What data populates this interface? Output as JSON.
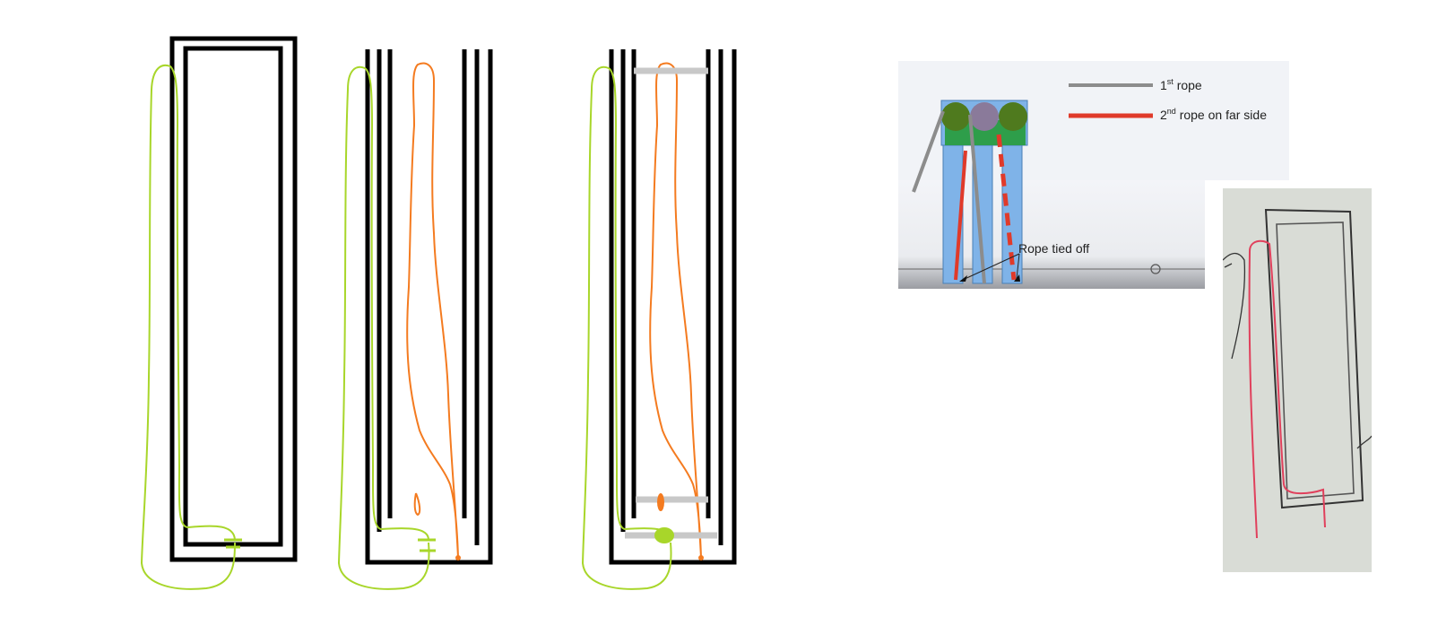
{
  "colors": {
    "frame": "#000000",
    "rope_green": "#a8d62a",
    "rope_orange": "#f47b20",
    "tie_bar": "#c8c8c8",
    "slide_bg": "#eef1f6",
    "log_blue": "#7fb3e8",
    "log_green": "#2e9e4a",
    "log_olive": "#4f7a1e",
    "log_mauve": "#8a7a9a",
    "rope_grey": "#8c8c8c",
    "rope_red": "#e03a2a",
    "photo_bg": "#d8dbd4",
    "pencil": "#444444",
    "pencil_red": "#e0405c"
  },
  "legend": {
    "rope1_label": "1",
    "rope1_sup": "st",
    "rope1_suffix": " rope",
    "rope2_label": "2",
    "rope2_sup": "nd",
    "rope2_suffix": " rope on far side"
  },
  "annotation": {
    "tied_off": "Rope tied off"
  }
}
